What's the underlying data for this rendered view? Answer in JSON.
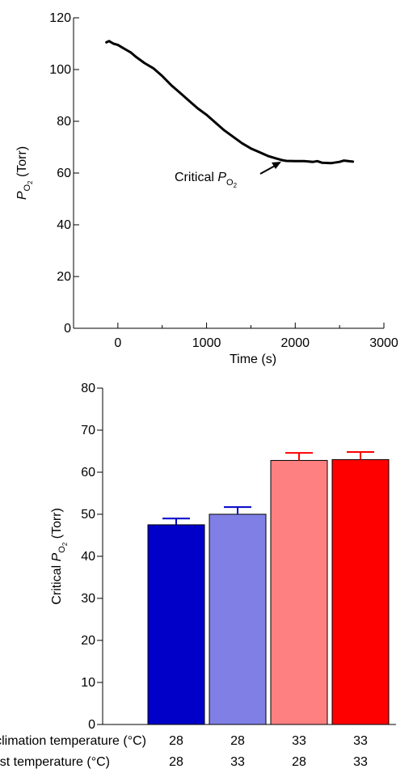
{
  "chart_data": [
    {
      "type": "line",
      "xlabel": "Time (s)",
      "ylabel": {
        "main": "P",
        "sub": "O",
        "subsub": "2",
        "suffix": " (Torr)"
      },
      "xlim": [
        -500,
        3000
      ],
      "ylim": [
        0,
        120
      ],
      "xticks": [
        "0",
        "1000",
        "2000",
        "3000"
      ],
      "xtick_values": [
        0,
        1000,
        2000,
        3000
      ],
      "yticks": [
        "0",
        "20",
        "40",
        "60",
        "80",
        "100",
        "120"
      ],
      "ytick_values": [
        0,
        20,
        40,
        60,
        80,
        100,
        120
      ],
      "annotation": {
        "text": "Critical ",
        "main": "P",
        "sub": "O",
        "subsub": "2",
        "x": 1800,
        "y": 64.5
      },
      "series": [
        {
          "x": [
            -130,
            -100,
            -50,
            0,
            50,
            100,
            150,
            200,
            300,
            400,
            500,
            600,
            700,
            800,
            900,
            1000,
            1100,
            1200,
            1300,
            1400,
            1500,
            1600,
            1700,
            1800,
            1850,
            1900,
            2000,
            2100,
            2200,
            2250,
            2300,
            2400,
            2500,
            2550,
            2600,
            2650
          ],
          "y": [
            110.5,
            111,
            110,
            109.5,
            108.5,
            107.5,
            106.5,
            105,
            102.5,
            100.5,
            97.5,
            94,
            91,
            88,
            85,
            82.5,
            79.5,
            76.5,
            74,
            71.5,
            69.5,
            68,
            66.5,
            65.5,
            65,
            64.7,
            64.6,
            64.6,
            64.3,
            64.6,
            64,
            63.8,
            64.3,
            64.8,
            64.6,
            64.4
          ]
        }
      ]
    },
    {
      "type": "bar",
      "ylabel": {
        "text": "Critical ",
        "main": "P",
        "sub": "O",
        "subsub": "2",
        "suffix": " (Torr)"
      },
      "ylim": [
        0,
        80
      ],
      "yticks": [
        "0",
        "10",
        "20",
        "30",
        "40",
        "50",
        "60",
        "70",
        "80"
      ],
      "ytick_values": [
        0,
        10,
        20,
        30,
        40,
        50,
        60,
        70,
        80
      ],
      "categories": [
        "28 / 28",
        "28 / 33",
        "33 / 28",
        "33 / 33"
      ],
      "values": [
        47.5,
        50,
        62.8,
        63
      ],
      "errors": [
        1.5,
        1.7,
        1.8,
        1.8
      ],
      "colors": [
        "#0000c8",
        "#7f7fe6",
        "#ff8080",
        "#ff0000"
      ],
      "error_colors": [
        "#0000c8",
        "#0000c8",
        "#ff0000",
        "#ff0000"
      ],
      "row1_label": "Acclimation temperature (°C)",
      "row1_values": [
        "28",
        "28",
        "33",
        "33"
      ],
      "row2_label": "Test temperature (°C)",
      "row2_values": [
        "28",
        "33",
        "28",
        "33"
      ]
    }
  ]
}
